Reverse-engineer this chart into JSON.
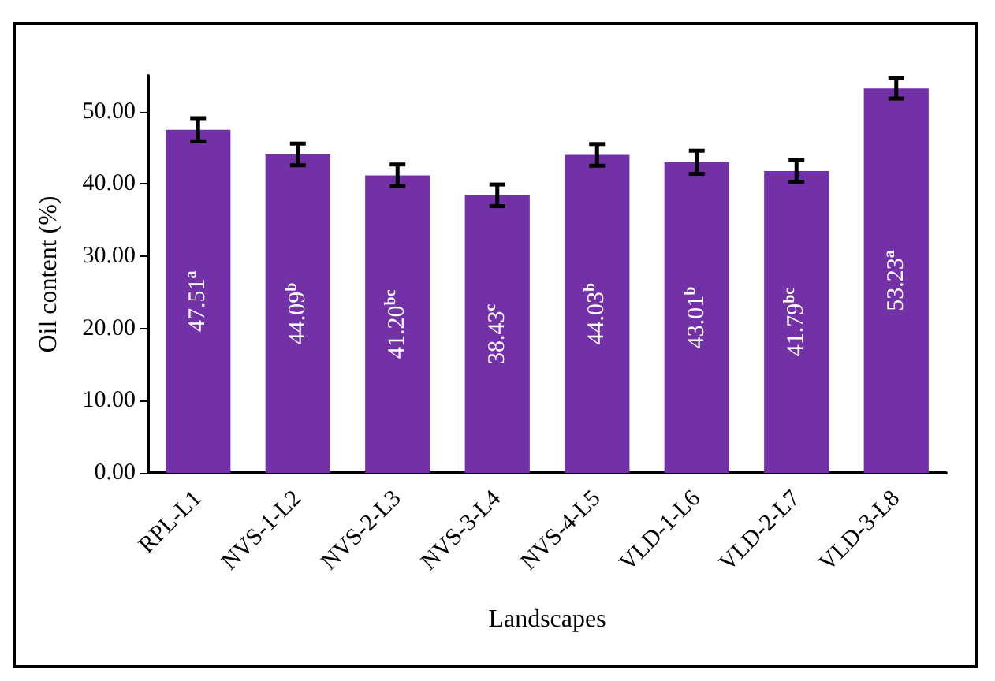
{
  "chart_data": {
    "type": "bar",
    "xlabel": "Landscapes",
    "ylabel": "Oil content (%)",
    "categories": [
      "RPL-L1",
      "NVS-1-L2",
      "NVS-2-L3",
      "NVS-3-L4",
      "NVS-4-L5",
      "VLD-1-L6",
      "VLD-2-L7",
      "VLD-3-L8"
    ],
    "values": [
      47.51,
      44.09,
      41.2,
      38.43,
      44.03,
      43.01,
      41.79,
      53.23
    ],
    "errors": [
      1.6,
      1.5,
      1.5,
      1.5,
      1.5,
      1.6,
      1.5,
      1.4
    ],
    "value_labels": [
      "47.51$^{a}$",
      "44.09$^{b}$",
      "41.20$^{bc}$",
      "38.43$^{c}$",
      "44.03$^{b}$",
      "43.01$^{b}$",
      "41.79$^{bc}$",
      "53.23$^{a}$"
    ],
    "color": "#7331a8",
    "ylim": [
      0,
      55
    ],
    "yticks": [
      {
        "value": 0,
        "label": "0.00"
      },
      {
        "value": 10,
        "label": "10.00"
      },
      {
        "value": 20,
        "label": "20.00"
      },
      {
        "value": 30,
        "label": "30.00"
      },
      {
        "value": 40,
        "label": "40.00"
      },
      {
        "value": 50,
        "label": "50.00"
      }
    ],
    "grid": false
  }
}
